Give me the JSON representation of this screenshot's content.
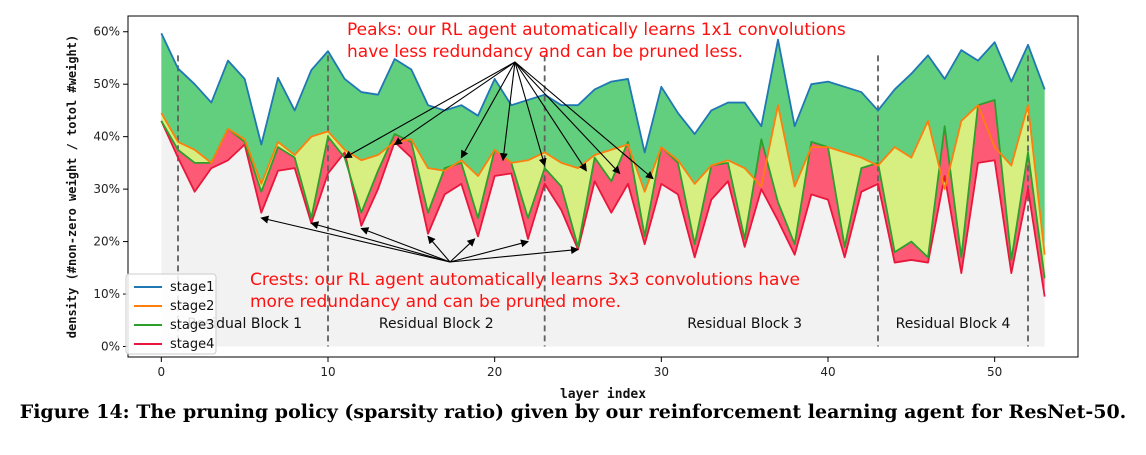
{
  "chart_data": {
    "type": "area",
    "title": "",
    "xlabel": "layer index",
    "ylabel": "density (#non-zero weight / totol #weight)",
    "xlim": [
      -2,
      55
    ],
    "ylim": [
      -0.02,
      0.63
    ],
    "x_ticks": [
      0,
      10,
      20,
      30,
      40,
      50
    ],
    "y_ticks": [
      0,
      0.1,
      0.2,
      0.3,
      0.4,
      0.5,
      0.6
    ],
    "y_tick_labels": [
      "0%",
      "10%",
      "20%",
      "30%",
      "40%",
      "50%",
      "60%"
    ],
    "legend_position": "lower-left",
    "series": [
      {
        "name": "stage1",
        "color": "#1f77b4",
        "values": [
          0.597,
          0.53,
          0.5,
          0.465,
          0.545,
          0.51,
          0.385,
          0.512,
          0.45,
          0.527,
          0.563,
          0.51,
          0.485,
          0.48,
          0.548,
          0.528,
          0.46,
          0.45,
          0.46,
          0.44,
          0.51,
          0.46,
          0.47,
          0.48,
          0.46,
          0.46,
          0.49,
          0.505,
          0.51,
          0.37,
          0.495,
          0.445,
          0.405,
          0.45,
          0.465,
          0.465,
          0.42,
          0.585,
          0.42,
          0.5,
          0.505,
          0.495,
          0.485,
          0.45,
          0.49,
          0.52,
          0.555,
          0.51,
          0.565,
          0.545,
          0.58,
          0.505,
          0.575,
          0.49
        ]
      },
      {
        "name": "stage2",
        "color": "#ff7f0e",
        "values": [
          0.445,
          0.39,
          0.375,
          0.35,
          0.415,
          0.395,
          0.31,
          0.39,
          0.365,
          0.4,
          0.41,
          0.375,
          0.355,
          0.365,
          0.39,
          0.395,
          0.34,
          0.335,
          0.355,
          0.325,
          0.375,
          0.35,
          0.355,
          0.37,
          0.35,
          0.34,
          0.365,
          0.375,
          0.385,
          0.295,
          0.38,
          0.355,
          0.31,
          0.345,
          0.355,
          0.34,
          0.305,
          0.46,
          0.305,
          0.38,
          0.38,
          0.37,
          0.36,
          0.345,
          0.38,
          0.36,
          0.43,
          0.3,
          0.43,
          0.46,
          0.38,
          0.345,
          0.46,
          0.175
        ]
      },
      {
        "name": "stage3",
        "color": "#2ca02c",
        "values": [
          0.43,
          0.375,
          0.35,
          0.35,
          0.415,
          0.39,
          0.295,
          0.38,
          0.36,
          0.245,
          0.4,
          0.36,
          0.255,
          0.335,
          0.405,
          0.39,
          0.255,
          0.34,
          0.35,
          0.245,
          0.375,
          0.35,
          0.245,
          0.34,
          0.305,
          0.19,
          0.36,
          0.315,
          0.39,
          0.21,
          0.38,
          0.35,
          0.195,
          0.345,
          0.35,
          0.205,
          0.395,
          0.275,
          0.195,
          0.39,
          0.38,
          0.19,
          0.34,
          0.35,
          0.18,
          0.2,
          0.17,
          0.42,
          0.17,
          0.46,
          0.47,
          0.165,
          0.37,
          0.13
        ]
      },
      {
        "name": "stage4",
        "color": "#e8173b",
        "values": [
          0.43,
          0.36,
          0.295,
          0.34,
          0.355,
          0.385,
          0.255,
          0.335,
          0.34,
          0.235,
          0.33,
          0.37,
          0.23,
          0.3,
          0.39,
          0.36,
          0.215,
          0.29,
          0.31,
          0.21,
          0.325,
          0.33,
          0.205,
          0.31,
          0.26,
          0.185,
          0.315,
          0.255,
          0.31,
          0.195,
          0.31,
          0.29,
          0.17,
          0.28,
          0.315,
          0.19,
          0.3,
          0.24,
          0.175,
          0.29,
          0.28,
          0.17,
          0.295,
          0.31,
          0.16,
          0.165,
          0.16,
          0.325,
          0.14,
          0.35,
          0.355,
          0.14,
          0.3,
          0.095
        ]
      }
    ],
    "fill_colors": {
      "background": "#f2f2f2",
      "stage1_band": "#61cf7e",
      "stage2_band": "#d7ef80",
      "stage3_band": "#fc5a75"
    },
    "block_dividers_x": [
      1,
      10,
      23,
      43,
      52
    ],
    "block_labels": [
      {
        "text": "Residual Block 1",
        "x": 5
      },
      {
        "text": "Residual Block 2",
        "x": 16.5
      },
      {
        "text": "Residual Block 3",
        "x": 35
      },
      {
        "text": "Residual Block 4",
        "x": 47.5
      }
    ],
    "annotations": {
      "peaks": {
        "lines": [
          "Peaks: our RL agent automatically learns 1x1 convolutions",
          "have less redundancy and can be pruned less."
        ],
        "targets": [
          [
            11,
            0.36
          ],
          [
            14,
            0.385
          ],
          [
            18,
            0.36
          ],
          [
            20.5,
            0.355
          ],
          [
            23,
            0.345
          ],
          [
            25.5,
            0.335
          ],
          [
            27.5,
            0.33
          ],
          [
            29.5,
            0.32
          ]
        ]
      },
      "crests": {
        "lines": [
          "Crests: our RL agent automatically learns 3x3 convolutions have",
          "more redundancy and can be pruned more."
        ],
        "targets": [
          [
            6,
            0.245
          ],
          [
            9,
            0.235
          ],
          [
            12,
            0.225
          ],
          [
            16,
            0.21
          ],
          [
            18.8,
            0.205
          ],
          [
            22,
            0.2
          ],
          [
            25,
            0.185
          ]
        ]
      }
    }
  },
  "caption": "Figure 14: The pruning policy (sparsity ratio) given by our reinforcement learning agent for ResNet-50."
}
